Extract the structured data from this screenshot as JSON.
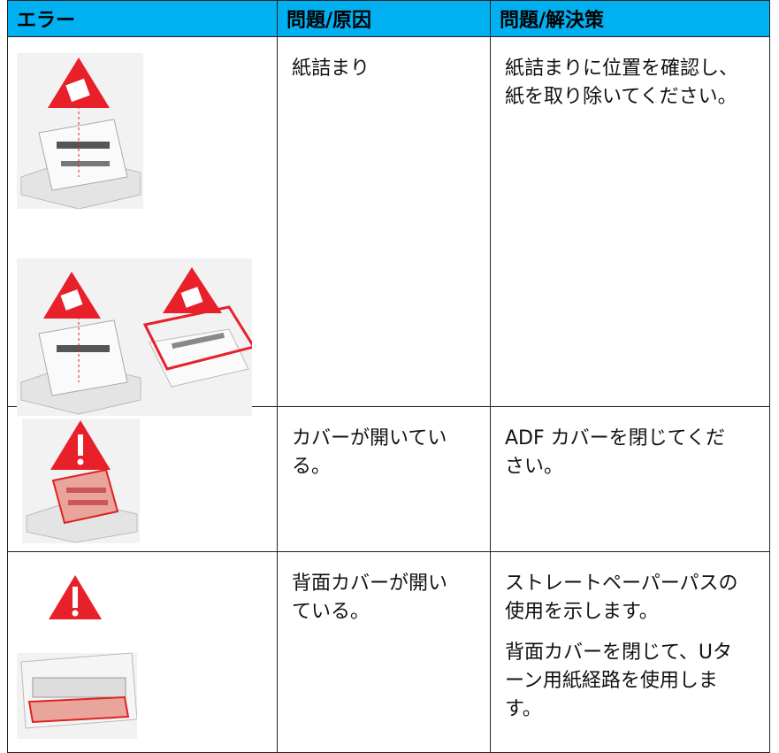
{
  "table": {
    "header": [
      "エラー",
      "問題/原因",
      "問題/解決策"
    ],
    "rows": [
      {
        "cause": "紙詰まり",
        "solution": [
          "紙詰まりに位置を確認し、紙を取り除いてください。"
        ]
      },
      {
        "cause": "カバーが開いている。",
        "solution": [
          "ADF カバーを閉じてください。"
        ]
      },
      {
        "cause": "背面カバーが開いている。",
        "solution": [
          "ストレートペーパーパスの使用を示します。",
          "背面カバーを閉じて、Uターン用紙経路を使用します。"
        ]
      }
    ]
  }
}
